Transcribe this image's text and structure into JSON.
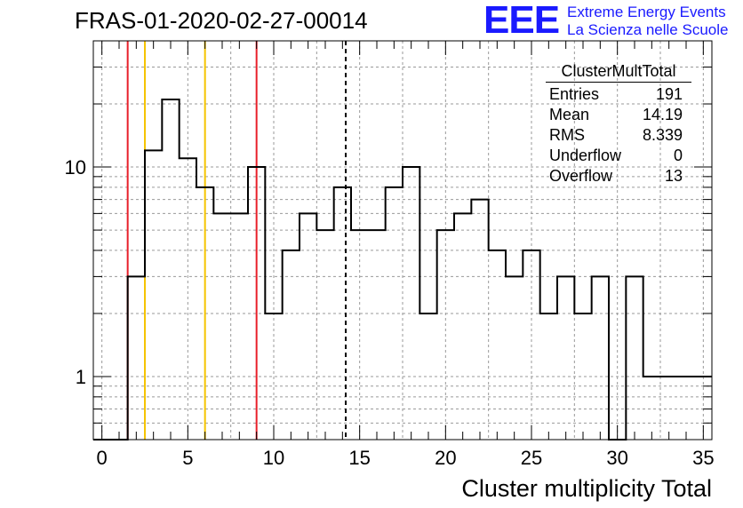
{
  "header": {
    "run_title": "FRAS-01-2020-02-27-00014",
    "logo_mark": "EEE",
    "logo_line1": "Extreme Energy Events",
    "logo_line2": "La Scienza nelle Scuole"
  },
  "stats": {
    "title": "ClusterMultTotal",
    "rows": [
      {
        "label": "Entries",
        "value": "191"
      },
      {
        "label": "Mean",
        "value": "14.19"
      },
      {
        "label": "RMS",
        "value": "8.339"
      },
      {
        "label": "Underflow",
        "value": "0"
      },
      {
        "label": "Overflow",
        "value": "13"
      }
    ]
  },
  "chart_data": {
    "type": "histogram",
    "xlabel": "Cluster multiplicity Total",
    "ylabel": "",
    "y_scale": "log",
    "xlim": [
      -0.5,
      35.5
    ],
    "ylim": [
      0.5,
      40
    ],
    "x_ticks": [
      0,
      5,
      10,
      15,
      20,
      25,
      30,
      35
    ],
    "y_ticks": [
      1,
      10
    ],
    "grid": true,
    "bin_width": 1,
    "bins_x": [
      0,
      1,
      2,
      3,
      4,
      5,
      6,
      7,
      8,
      9,
      10,
      11,
      12,
      13,
      14,
      15,
      16,
      17,
      18,
      19,
      20,
      21,
      22,
      23,
      24,
      25,
      26,
      27,
      28,
      29,
      30,
      31,
      32,
      33,
      34,
      35
    ],
    "counts": [
      0,
      0,
      3,
      12,
      21,
      11,
      8,
      6,
      6,
      10,
      2,
      4,
      6,
      5,
      8,
      5,
      5,
      8,
      10,
      2,
      5,
      6,
      7,
      4,
      3,
      4,
      2,
      3,
      2,
      3,
      0,
      3,
      1,
      1,
      1,
      1
    ],
    "vertical_lines": [
      {
        "x": 1.5,
        "color": "#e8202a",
        "style": "solid"
      },
      {
        "x": 2.5,
        "color": "#f5c400",
        "style": "solid"
      },
      {
        "x": 6.0,
        "color": "#f5c400",
        "style": "solid"
      },
      {
        "x": 9.0,
        "color": "#e8202a",
        "style": "solid"
      },
      {
        "x": 14.19,
        "color": "#000000",
        "style": "dashed"
      }
    ]
  }
}
